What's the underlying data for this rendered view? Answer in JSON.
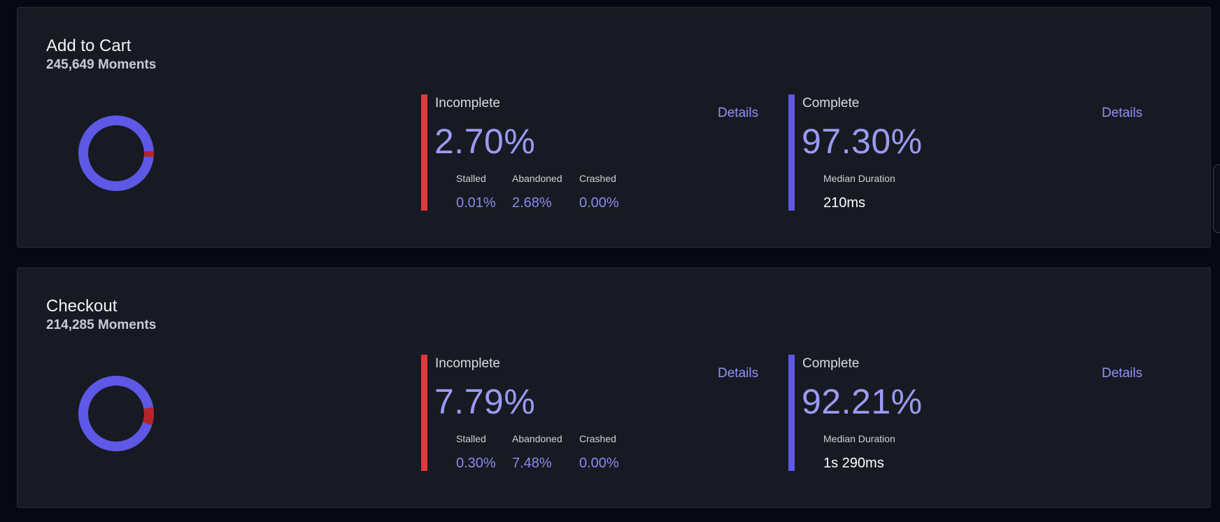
{
  "cards": [
    {
      "title": "Add to Cart",
      "moments": "245,649 Moments",
      "donut": {
        "complete_pct": 97.3,
        "incomplete_pct": 2.7
      },
      "incomplete": {
        "label": "Incomplete",
        "value": "2.70%",
        "details": "Details",
        "stalled_label": "Stalled",
        "stalled": "0.01%",
        "abandoned_label": "Abandoned",
        "abandoned": "2.68%",
        "crashed_label": "Crashed",
        "crashed": "0.00%"
      },
      "complete": {
        "label": "Complete",
        "value": "97.30%",
        "details": "Details",
        "median_label": "Median Duration",
        "median": "210ms"
      }
    },
    {
      "title": "Checkout",
      "moments": "214,285 Moments",
      "donut": {
        "complete_pct": 92.21,
        "incomplete_pct": 7.79
      },
      "incomplete": {
        "label": "Incomplete",
        "value": "7.79%",
        "details": "Details",
        "stalled_label": "Stalled",
        "stalled": "0.30%",
        "abandoned_label": "Abandoned",
        "abandoned": "7.48%",
        "crashed_label": "Crashed",
        "crashed": "0.00%"
      },
      "complete": {
        "label": "Complete",
        "value": "92.21%",
        "details": "Details",
        "median_label": "Median Duration",
        "median": "1s 290ms"
      }
    }
  ],
  "colors": {
    "complete": "#5d58e6",
    "incomplete": "#b3262a",
    "incomplete_bar": "#e0393c",
    "accent_text": "#9c9af3"
  }
}
